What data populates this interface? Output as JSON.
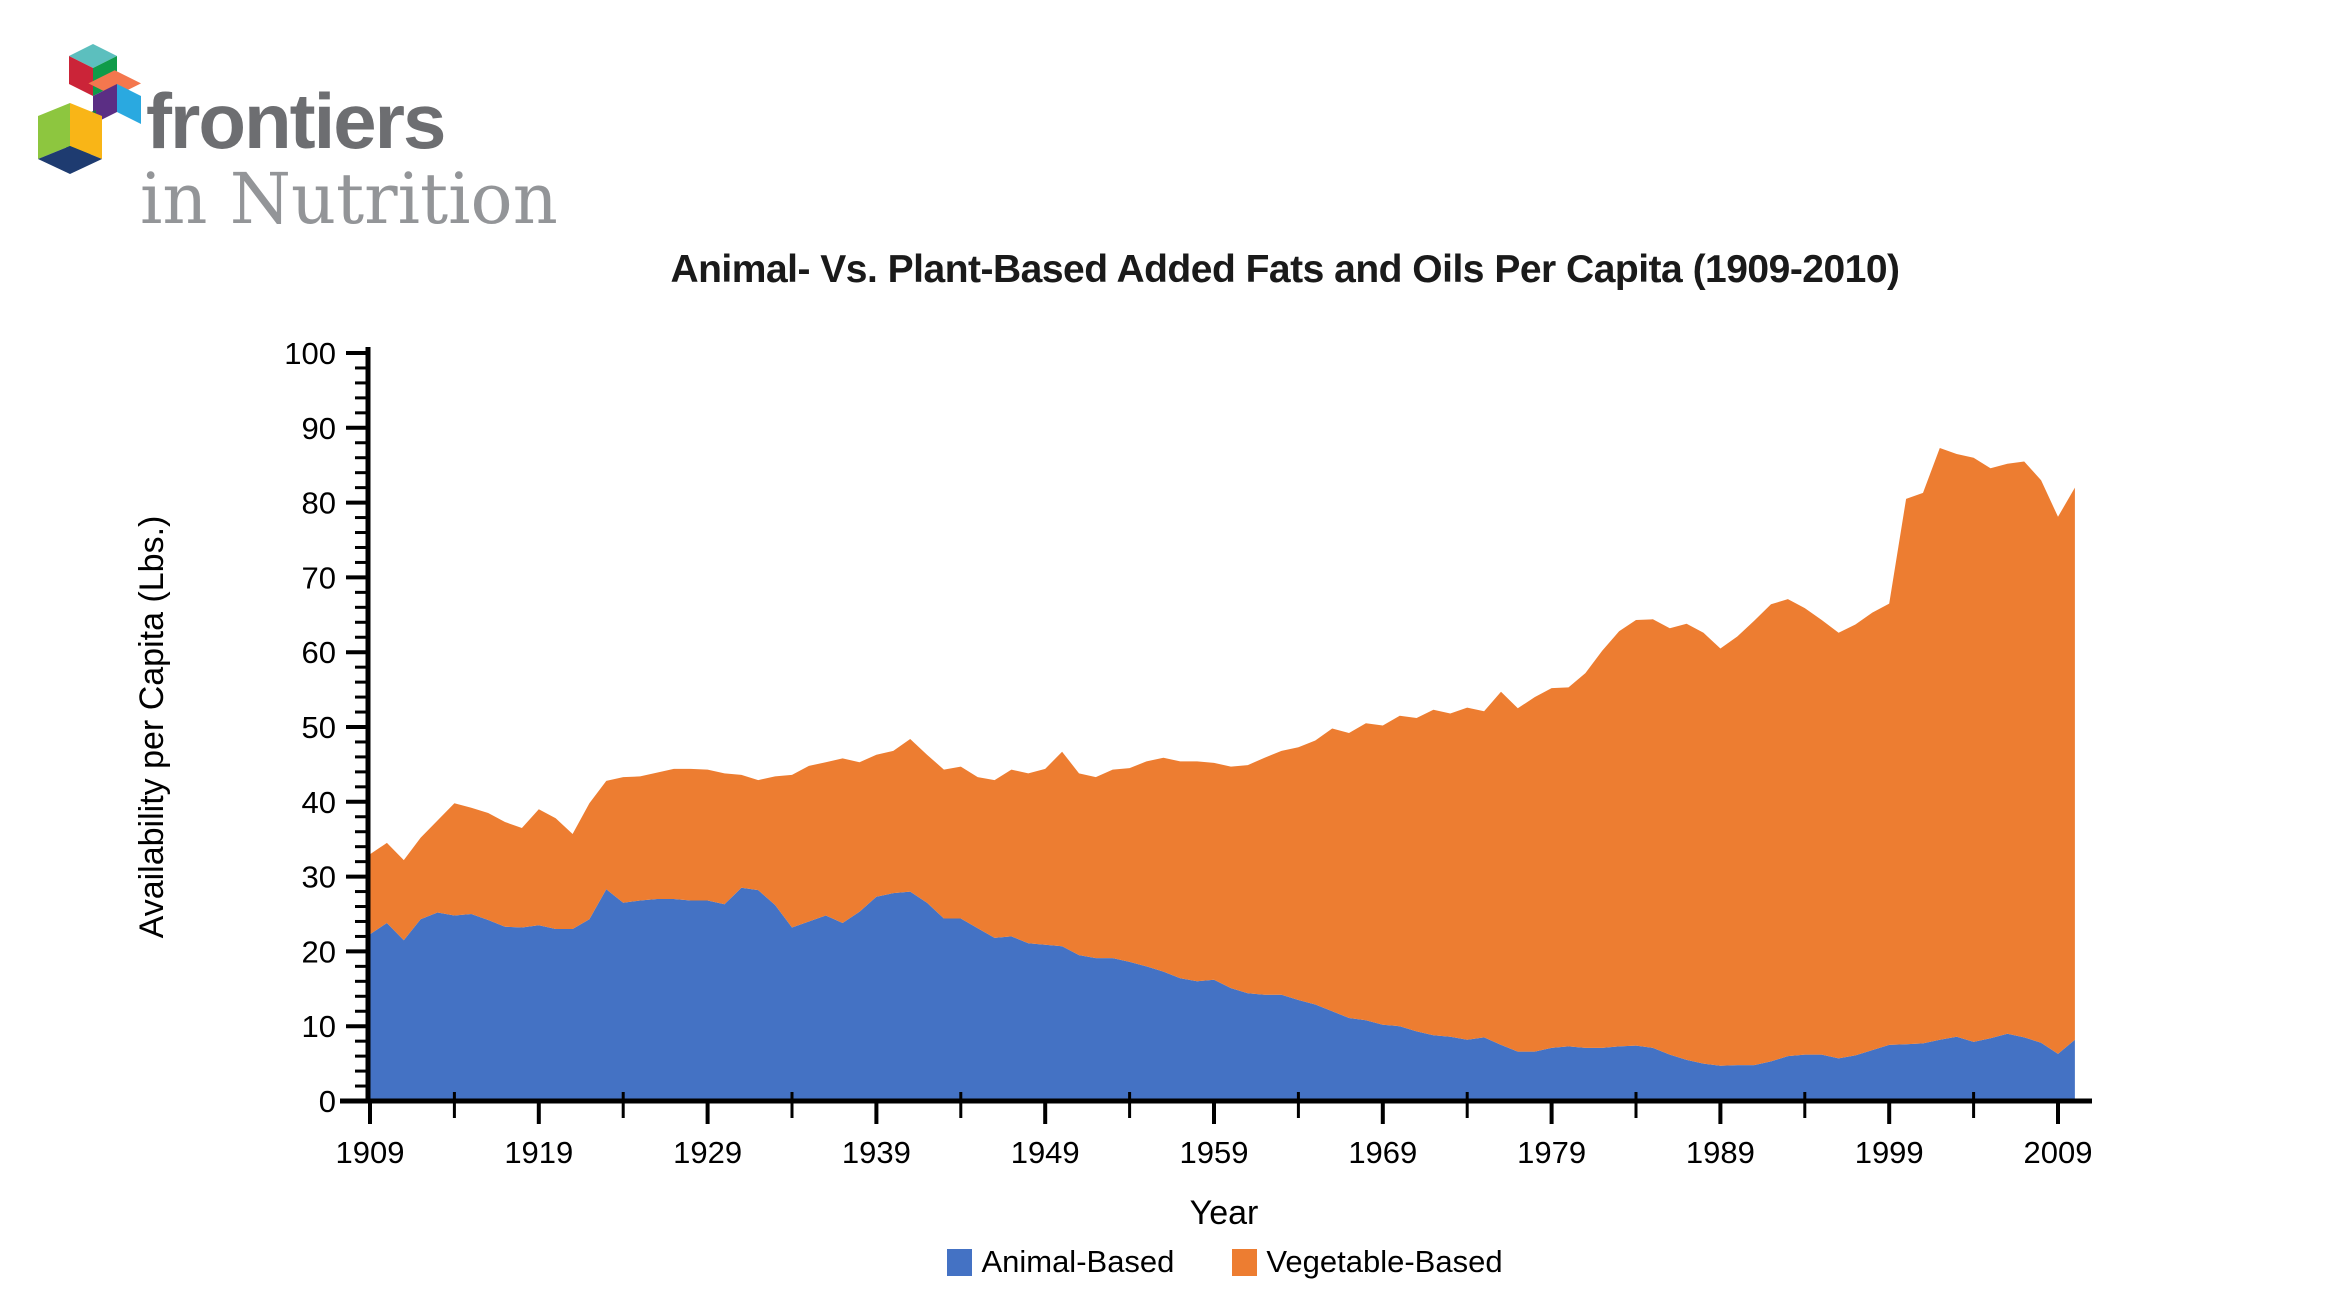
{
  "logo": {
    "brand": "frontiers",
    "journal": "in Nutrition"
  },
  "chart_data": {
    "type": "area",
    "stacked": true,
    "title": "Animal- Vs. Plant-Based Added Fats and Oils Per Capita (1909-2010)",
    "xlabel": "Year",
    "ylabel": "Availability per Capita (Lbs.)",
    "ylim": [
      0,
      100
    ],
    "y_major_step": 10,
    "y_minor_step": 2,
    "x_tick_labels": [
      1909,
      1919,
      1929,
      1939,
      1949,
      1959,
      1969,
      1979,
      1989,
      1999,
      2009
    ],
    "x_minor_step_years": 5,
    "legend_position": "bottom",
    "grid": false,
    "x": [
      1909,
      1910,
      1911,
      1912,
      1913,
      1914,
      1915,
      1916,
      1917,
      1918,
      1919,
      1920,
      1921,
      1922,
      1923,
      1924,
      1925,
      1926,
      1927,
      1928,
      1929,
      1930,
      1931,
      1932,
      1933,
      1934,
      1935,
      1936,
      1937,
      1938,
      1939,
      1940,
      1941,
      1942,
      1943,
      1944,
      1945,
      1946,
      1947,
      1948,
      1949,
      1950,
      1951,
      1952,
      1953,
      1954,
      1955,
      1956,
      1957,
      1958,
      1959,
      1960,
      1961,
      1962,
      1963,
      1964,
      1965,
      1966,
      1967,
      1968,
      1969,
      1970,
      1971,
      1972,
      1973,
      1974,
      1975,
      1976,
      1977,
      1978,
      1979,
      1980,
      1981,
      1982,
      1983,
      1984,
      1985,
      1986,
      1987,
      1988,
      1989,
      1990,
      1991,
      1992,
      1993,
      1994,
      1995,
      1996,
      1997,
      1998,
      1999,
      2000,
      2001,
      2002,
      2003,
      2004,
      2005,
      2006,
      2007,
      2008,
      2009,
      2010
    ],
    "series": [
      {
        "name": "Animal-Based",
        "color": "#4472C4",
        "values": [
          22.3,
          23.8,
          21.5,
          24.3,
          25.2,
          24.8,
          25.0,
          24.2,
          23.3,
          23.2,
          23.5,
          23.0,
          23.0,
          24.3,
          28.3,
          26.5,
          26.8,
          27.0,
          27.0,
          26.8,
          26.8,
          26.3,
          28.5,
          28.2,
          26.2,
          23.2,
          24.0,
          24.8,
          23.8,
          25.3,
          27.3,
          27.8,
          28.0,
          26.5,
          24.4,
          24.4,
          23.1,
          21.8,
          22.0,
          21.1,
          20.9,
          20.7,
          19.5,
          19.1,
          19.1,
          18.6,
          18.0,
          17.3,
          16.4,
          16.0,
          16.2,
          15.1,
          14.4,
          14.2,
          14.2,
          13.5,
          12.9,
          12.0,
          11.1,
          10.8,
          10.2,
          10.0,
          9.3,
          8.8,
          8.6,
          8.2,
          8.5,
          7.5,
          6.6,
          6.6,
          7.1,
          7.3,
          7.1,
          7.1,
          7.3,
          7.4,
          7.1,
          6.2,
          5.5,
          5.0,
          4.7,
          4.8,
          4.8,
          5.3,
          6.0,
          6.2,
          6.2,
          5.7,
          6.1,
          6.8,
          7.5,
          7.6,
          7.7,
          8.2,
          8.6,
          7.9,
          8.4,
          9.0,
          8.5,
          7.8,
          6.3,
          8.2
        ]
      },
      {
        "name": "Vegetable-Based",
        "color": "#ED7D31",
        "values": [
          10.7,
          10.7,
          10.7,
          10.9,
          12.3,
          15.0,
          14.2,
          14.3,
          14.0,
          13.3,
          15.5,
          14.8,
          12.7,
          15.5,
          14.5,
          16.8,
          16.6,
          16.9,
          17.4,
          17.6,
          17.5,
          17.5,
          15.1,
          14.7,
          17.2,
          20.4,
          20.8,
          20.5,
          22.0,
          20.0,
          19.0,
          19.0,
          20.4,
          19.8,
          19.9,
          20.3,
          20.2,
          21.1,
          22.3,
          22.7,
          23.5,
          26.0,
          24.3,
          24.2,
          25.2,
          25.9,
          27.4,
          28.6,
          29.0,
          29.4,
          29.0,
          29.6,
          30.5,
          31.7,
          32.6,
          33.8,
          35.3,
          37.8,
          38.1,
          39.7,
          40.0,
          41.5,
          41.9,
          43.5,
          43.2,
          44.4,
          43.6,
          47.2,
          45.9,
          47.4,
          48.1,
          48.0,
          50.1,
          53.1,
          55.5,
          56.9,
          57.3,
          57.0,
          58.3,
          57.6,
          55.8,
          57.3,
          59.4,
          61.1,
          61.1,
          59.7,
          58.1,
          56.9,
          57.6,
          58.5,
          59.0,
          72.9,
          73.6,
          79.1,
          77.9,
          78.1,
          76.2,
          76.2,
          77.0,
          75.2,
          71.8,
          73.8
        ]
      }
    ]
  },
  "logo_colors": {
    "teal": "#5CBFBE",
    "red": "#CB2438",
    "green": "#0F9B49",
    "darkgreen": "#17734B",
    "orange": "#F4774E",
    "skyblue": "#2AA9E0",
    "purple": "#5B2E84",
    "lime": "#8DC63F",
    "yellow": "#F9B517",
    "navy": "#1E3B70"
  }
}
